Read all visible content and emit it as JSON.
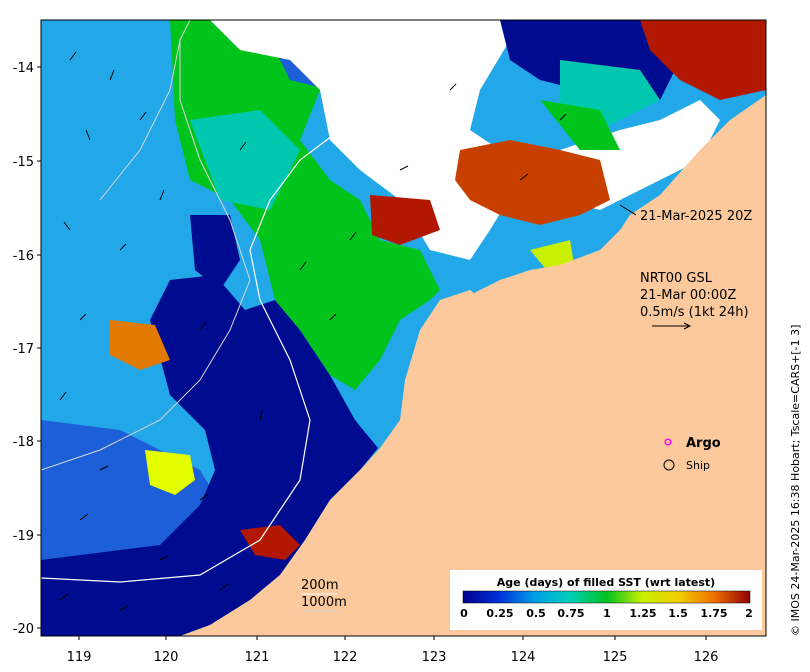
{
  "map": {
    "axes": {
      "lon_ticks": [
        "119",
        "120",
        "121",
        "122",
        "123",
        "124",
        "125",
        "126"
      ],
      "lat_ticks": [
        "-14",
        "-15",
        "-16",
        "-17",
        "-18",
        "-19",
        "-20"
      ],
      "lon_range": [
        118.7,
        126.8
      ],
      "lat_range": [
        -20.05,
        -13.5
      ]
    },
    "annotations": {
      "time_label": "21-Mar-2025 20Z",
      "current_source": "NRT00 GSL",
      "current_time": "21-Mar 00:00Z",
      "current_scale": "0.5m/s (1kt 24h)",
      "argo_label": "Argo",
      "ship_label": "Ship",
      "isobath_200": "200m",
      "isobath_1000": "1000m",
      "credit": "© IMOS 24-Mar-2025 16:38 Hobart; Tscale=CARS+[-1 3]"
    },
    "colorbar": {
      "title": "Age (days) of filled SST (wrt latest)",
      "ticks": [
        "0",
        "0.25",
        "0.5",
        "0.75",
        "1",
        "1.25",
        "1.5",
        "1.75",
        "2"
      ],
      "range": [
        0,
        2
      ]
    },
    "colors": {
      "land": "#fbc99b",
      "deep_blue": "#000c8f",
      "blue": "#1c5fd8",
      "sky": "#22a8e8",
      "cyan": "#00c8b0",
      "green": "#00c41c",
      "yellow": "#e4ff00",
      "orange": "#f07800",
      "red": "#b21800",
      "argo": "#ff00ff"
    }
  }
}
